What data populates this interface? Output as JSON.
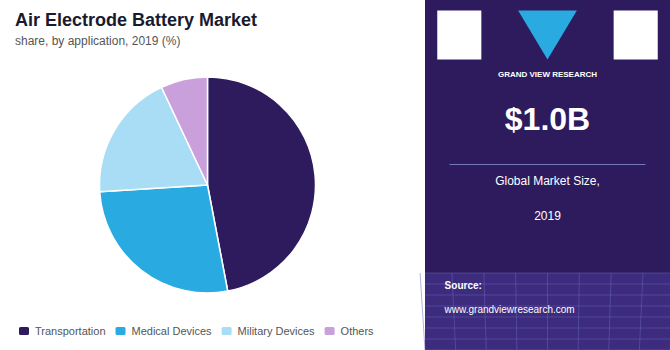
{
  "chart_data": {
    "type": "pie",
    "title": "Air Electrode Battery Market",
    "subtitle": "share, by application, 2019 (%)",
    "categories": [
      "Transportation",
      "Medical Devices",
      "Military Devices",
      "Others"
    ],
    "values": [
      47,
      27,
      19,
      7
    ],
    "colors": [
      "#2d1b5e",
      "#29aae1",
      "#a8ddf5",
      "#c9a0dc"
    ],
    "legend": "bottom",
    "annotations": [
      "GRAND VIEW RESEARCH",
      "$1.0B",
      "Global Market Size,",
      "2019",
      "Source:",
      "www.grandviewresearch.com"
    ]
  }
}
